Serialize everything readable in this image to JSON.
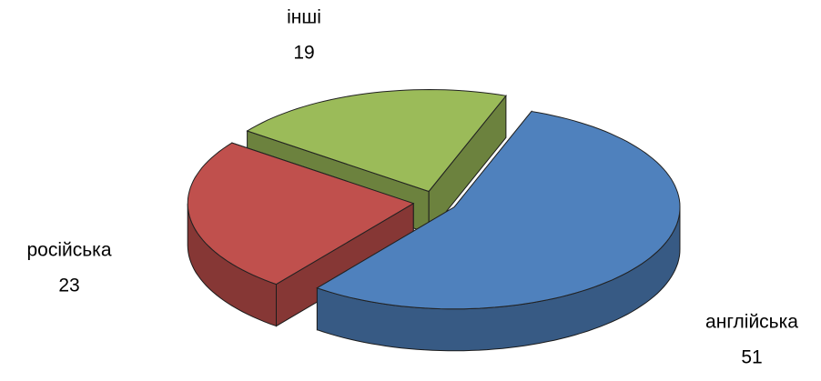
{
  "chart_data": {
    "type": "pie",
    "categories": [
      "англійська",
      "російська",
      "інші"
    ],
    "values": [
      51,
      23,
      19
    ],
    "colors": [
      "#4f81bd",
      "#c0504d",
      "#9bbb59"
    ]
  }
}
